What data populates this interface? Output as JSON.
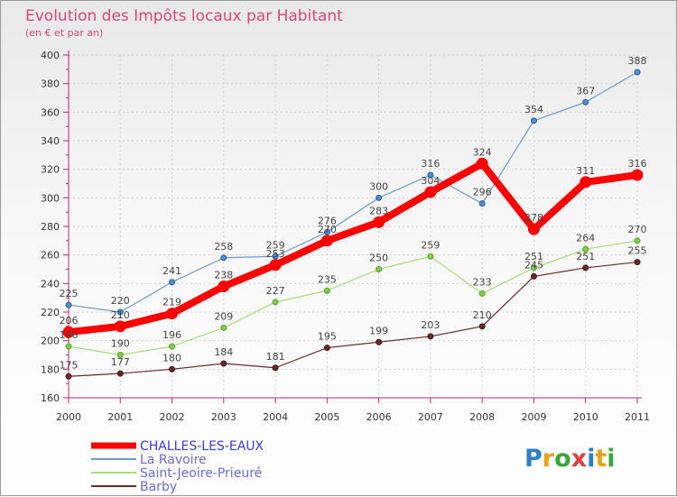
{
  "chart_data": {
    "type": "line",
    "title": "Evolution des Impôts locaux par Habitant",
    "subtitle": "(en € et par an)",
    "xlabel": "",
    "ylabel": "",
    "x": [
      "2000",
      "2001",
      "2002",
      "2003",
      "2004",
      "2005",
      "2006",
      "2007",
      "2008",
      "2009",
      "2010",
      "2011"
    ],
    "ylim": [
      160,
      400
    ],
    "yticks": [
      "160",
      "180",
      "200",
      "220",
      "240",
      "260",
      "280",
      "300",
      "320",
      "340",
      "360",
      "380",
      "400"
    ],
    "grid": true,
    "legend_position": "bottom-left",
    "series": [
      {
        "name": "CHALLES-LES-EAUX",
        "color": "#ff0000",
        "values": [
          206,
          210,
          219,
          238,
          253,
          270,
          283,
          304,
          324,
          278,
          311,
          316
        ],
        "labels": [
          "206",
          "210",
          "219",
          "238",
          "253",
          "270",
          "283",
          "304",
          "324",
          "278",
          "311",
          "316"
        ]
      },
      {
        "name": "La Ravoire",
        "color": "#6a9bc9",
        "values": [
          225,
          220,
          241,
          258,
          259,
          276,
          300,
          316,
          296,
          354,
          367,
          388
        ],
        "labels": [
          "225",
          "220",
          "241",
          "258",
          "259",
          "276",
          "300",
          "316",
          "296",
          "354",
          "367",
          "388"
        ]
      },
      {
        "name": "Saint-Jeoire-Prieuré",
        "color": "#a8db7a",
        "values": [
          196,
          190,
          196,
          209,
          227,
          235,
          250,
          259,
          233,
          251,
          264,
          270
        ],
        "labels": [
          "196",
          "190",
          "196",
          "209",
          "227",
          "235",
          "250",
          "259",
          "233",
          "251",
          "264",
          "270"
        ]
      },
      {
        "name": "Barby",
        "color": "#6b2a2a",
        "values": [
          175,
          177,
          180,
          184,
          181,
          195,
          199,
          203,
          210,
          245,
          251,
          255
        ],
        "labels": [
          "175",
          "177",
          "180",
          "184",
          "181",
          "195",
          "199",
          "203",
          "210",
          "245",
          "251",
          "255"
        ]
      }
    ]
  },
  "logo": {
    "text": "Proxiti"
  }
}
